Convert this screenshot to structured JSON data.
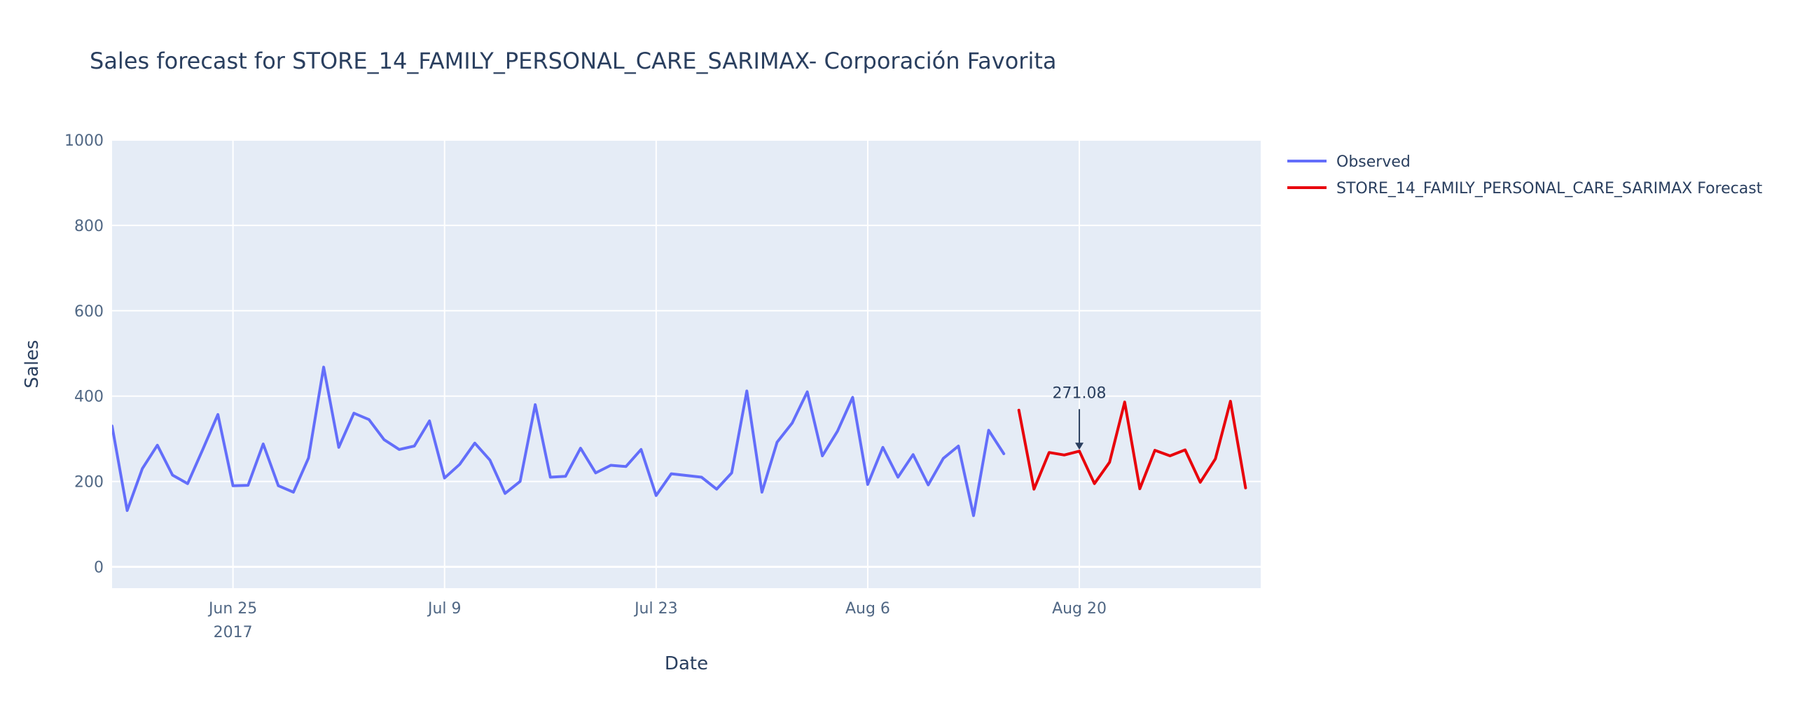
{
  "chart_data": {
    "type": "line",
    "title": "Sales forecast for STORE_14_FAMILY_PERSONAL_CARE_SARIMAX- Corporación Favorita",
    "xlabel": "Date",
    "ylabel": "Sales",
    "ylim": [
      -50,
      1000
    ],
    "xlim": [
      "2017-06-17",
      "2017-09-01"
    ],
    "y_ticks": [
      0,
      200,
      400,
      600,
      800,
      1000
    ],
    "x_ticks": [
      {
        "date": "2017-06-25",
        "label": "Jun 25",
        "sublabel": "2017"
      },
      {
        "date": "2017-07-09",
        "label": "Jul 9",
        "sublabel": ""
      },
      {
        "date": "2017-07-23",
        "label": "Jul 23",
        "sublabel": ""
      },
      {
        "date": "2017-08-06",
        "label": "Aug 6",
        "sublabel": ""
      },
      {
        "date": "2017-08-20",
        "label": "Aug 20",
        "sublabel": ""
      }
    ],
    "grid": true,
    "legend": "top-right outside plot",
    "series": [
      {
        "name": "Observed",
        "color": "#636efa",
        "points": [
          [
            "2017-06-17",
            330
          ],
          [
            "2017-06-18",
            132
          ],
          [
            "2017-06-19",
            230
          ],
          [
            "2017-06-20",
            285
          ],
          [
            "2017-06-21",
            215
          ],
          [
            "2017-06-22",
            195
          ],
          [
            "2017-06-23",
            275
          ],
          [
            "2017-06-24",
            357
          ],
          [
            "2017-06-25",
            190
          ],
          [
            "2017-06-26",
            191
          ],
          [
            "2017-06-27",
            288
          ],
          [
            "2017-06-28",
            190
          ],
          [
            "2017-06-29",
            175
          ],
          [
            "2017-06-30",
            255
          ],
          [
            "2017-07-01",
            468
          ],
          [
            "2017-07-02",
            280
          ],
          [
            "2017-07-03",
            360
          ],
          [
            "2017-07-04",
            345
          ],
          [
            "2017-07-05",
            298
          ],
          [
            "2017-07-06",
            275
          ],
          [
            "2017-07-07",
            283
          ],
          [
            "2017-07-08",
            342
          ],
          [
            "2017-07-09",
            208
          ],
          [
            "2017-07-10",
            240
          ],
          [
            "2017-07-11",
            290
          ],
          [
            "2017-07-12",
            250
          ],
          [
            "2017-07-13",
            172
          ],
          [
            "2017-07-14",
            200
          ],
          [
            "2017-07-15",
            380
          ],
          [
            "2017-07-16",
            210
          ],
          [
            "2017-07-17",
            212
          ],
          [
            "2017-07-18",
            278
          ],
          [
            "2017-07-19",
            220
          ],
          [
            "2017-07-20",
            238
          ],
          [
            "2017-07-21",
            235
          ],
          [
            "2017-07-22",
            275
          ],
          [
            "2017-07-23",
            167
          ],
          [
            "2017-07-24",
            218
          ],
          [
            "2017-07-26",
            210
          ],
          [
            "2017-07-27",
            182
          ],
          [
            "2017-07-28",
            220
          ],
          [
            "2017-07-29",
            412
          ],
          [
            "2017-07-30",
            175
          ],
          [
            "2017-07-31",
            292
          ],
          [
            "2017-08-01",
            337
          ],
          [
            "2017-08-02",
            410
          ],
          [
            "2017-08-03",
            260
          ],
          [
            "2017-08-04",
            318
          ],
          [
            "2017-08-05",
            397
          ],
          [
            "2017-08-06",
            193
          ],
          [
            "2017-08-07",
            280
          ],
          [
            "2017-08-08",
            210
          ],
          [
            "2017-08-09",
            263
          ],
          [
            "2017-08-10",
            192
          ],
          [
            "2017-08-11",
            254
          ],
          [
            "2017-08-12",
            283
          ],
          [
            "2017-08-13",
            120
          ],
          [
            "2017-08-14",
            320
          ],
          [
            "2017-08-15",
            265
          ]
        ]
      },
      {
        "name": "STORE_14_FAMILY_PERSONAL_CARE_SARIMAX Forecast",
        "color": "#e8000b",
        "points": [
          [
            "2017-08-16",
            367
          ],
          [
            "2017-08-17",
            182
          ],
          [
            "2017-08-18",
            268
          ],
          [
            "2017-08-19",
            262
          ],
          [
            "2017-08-20",
            271.08
          ],
          [
            "2017-08-21",
            195
          ],
          [
            "2017-08-22",
            245
          ],
          [
            "2017-08-23",
            386
          ],
          [
            "2017-08-24",
            183
          ],
          [
            "2017-08-25",
            273
          ],
          [
            "2017-08-26",
            260
          ],
          [
            "2017-08-27",
            274
          ],
          [
            "2017-08-28",
            198
          ],
          [
            "2017-08-29",
            253
          ],
          [
            "2017-08-30",
            388
          ],
          [
            "2017-08-31",
            185
          ]
        ]
      }
    ],
    "annotations": [
      {
        "date": "2017-08-20",
        "value": 271.08,
        "text": "271.08"
      }
    ]
  }
}
